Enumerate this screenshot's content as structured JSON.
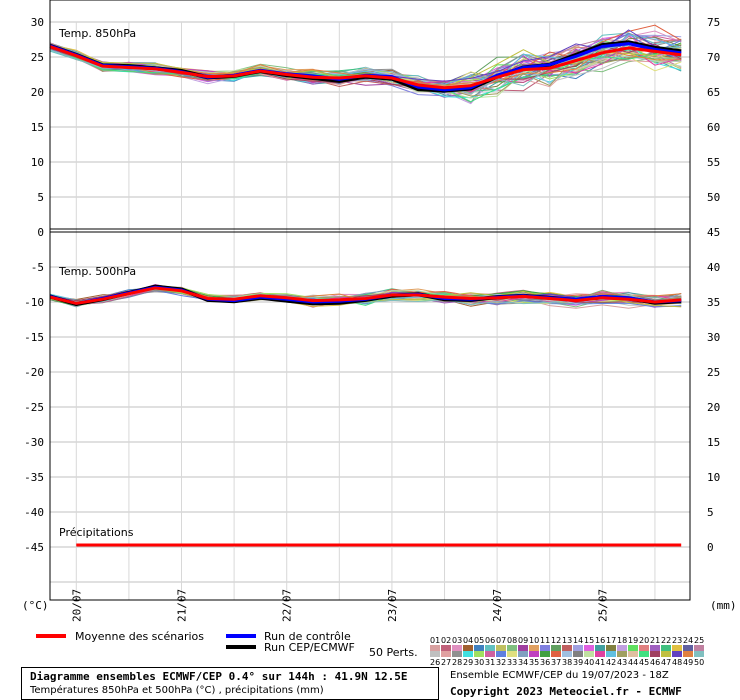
{
  "chart_data": [
    {
      "type": "line",
      "panel_label": "Temp. 850hPa",
      "ylim": [
        0,
        30
      ],
      "yticks": [
        0,
        5,
        10,
        15,
        20,
        25,
        30
      ],
      "right_ylim": [
        45,
        75
      ],
      "right_yticks": [
        45,
        50,
        55,
        60,
        65,
        70,
        75
      ],
      "x": [
        0,
        6,
        12,
        18,
        24,
        30,
        36,
        42,
        48,
        54,
        60,
        66,
        72,
        78,
        84,
        90,
        96,
        102,
        108,
        114,
        120,
        126,
        132,
        138,
        144
      ],
      "series": [
        {
          "role": "mean",
          "color": "#ff0000",
          "values": [
            26.5,
            25.2,
            23.7,
            23.5,
            23.3,
            22.8,
            22.2,
            22.3,
            23.0,
            22.5,
            22.1,
            22.0,
            22.3,
            22.0,
            21.0,
            20.6,
            20.9,
            22.1,
            23.2,
            23.4,
            24.5,
            25.6,
            26.3,
            25.8,
            25.3
          ]
        },
        {
          "role": "control",
          "color": "#0000ff",
          "values": [
            26.6,
            25.3,
            23.8,
            23.6,
            23.4,
            22.9,
            22.1,
            22.4,
            23.1,
            22.6,
            22.3,
            21.8,
            22.4,
            22.2,
            20.7,
            20.3,
            20.6,
            22.4,
            23.5,
            23.9,
            25.1,
            26.5,
            26.9,
            26.1,
            25.6
          ]
        },
        {
          "role": "cep",
          "color": "#000000",
          "values": [
            26.6,
            25.3,
            23.8,
            23.7,
            23.4,
            23.0,
            22.1,
            22.3,
            23.0,
            22.4,
            22.0,
            21.6,
            22.2,
            21.9,
            20.4,
            20.2,
            20.5,
            22.2,
            23.5,
            23.9,
            25.3,
            26.7,
            27.1,
            26.3,
            25.8
          ]
        }
      ]
    },
    {
      "type": "line",
      "panel_label": "Temp. 500hPa",
      "ylim": [
        -45,
        -5
      ],
      "yticks": [
        -45,
        -40,
        -35,
        -30,
        -25,
        -20,
        -15,
        -10,
        -5
      ],
      "right_ylim": [
        0,
        40
      ],
      "right_yticks": [
        0,
        5,
        10,
        15,
        20,
        25,
        30,
        35,
        40
      ],
      "x": [
        0,
        6,
        12,
        18,
        24,
        30,
        36,
        42,
        48,
        54,
        60,
        66,
        72,
        78,
        84,
        90,
        96,
        102,
        108,
        114,
        120,
        126,
        132,
        138,
        144
      ],
      "series": [
        {
          "role": "mean",
          "color": "#ff0000",
          "values": [
            -9.3,
            -10.2,
            -9.6,
            -8.8,
            -8.0,
            -8.4,
            -9.5,
            -9.6,
            -9.1,
            -9.4,
            -9.8,
            -9.7,
            -9.5,
            -9.0,
            -9.0,
            -9.3,
            -9.5,
            -9.4,
            -9.2,
            -9.5,
            -9.8,
            -9.4,
            -9.6,
            -10.0,
            -9.7
          ]
        },
        {
          "role": "control",
          "color": "#0000ff",
          "values": [
            -9.2,
            -10.2,
            -9.5,
            -8.7,
            -7.9,
            -8.3,
            -9.6,
            -9.8,
            -9.3,
            -9.6,
            -10.0,
            -9.9,
            -9.6,
            -9.0,
            -8.9,
            -9.5,
            -9.6,
            -9.3,
            -9.1,
            -9.4,
            -9.6,
            -9.2,
            -9.4,
            -10.0,
            -9.8
          ]
        },
        {
          "role": "cep",
          "color": "#000000",
          "values": [
            -9.2,
            -10.3,
            -9.6,
            -8.7,
            -7.8,
            -8.2,
            -9.7,
            -9.9,
            -9.4,
            -9.8,
            -10.2,
            -10.1,
            -9.7,
            -9.1,
            -8.9,
            -9.6,
            -9.7,
            -9.3,
            -9.1,
            -9.4,
            -9.7,
            -9.3,
            -9.5,
            -10.1,
            -9.9
          ]
        }
      ]
    },
    {
      "type": "line",
      "panel_label": "Précipitations",
      "x": [
        6,
        12,
        18,
        24,
        30,
        36,
        42,
        48,
        54,
        60,
        66,
        72,
        78,
        84,
        90,
        96,
        102,
        108,
        114,
        120,
        126,
        132,
        138,
        144
      ],
      "series": [
        {
          "role": "mean",
          "color": "#ff0000",
          "values": [
            0,
            0,
            0,
            0,
            0,
            0,
            0,
            0,
            0,
            0,
            0,
            0,
            0,
            0,
            0,
            0,
            0,
            0,
            0,
            0,
            0,
            0,
            0,
            0
          ]
        }
      ]
    }
  ],
  "x_axis": {
    "date_ticks": [
      "20/07",
      "21/07",
      "22/07",
      "23/07",
      "24/07",
      "25/07"
    ],
    "left_unit": "(°C)",
    "right_unit": "(mm)"
  },
  "ensemble_colors": [
    "#d8a0a0",
    "#c0607a",
    "#e090c0",
    "#a06030",
    "#4080c0",
    "#60c0c0",
    "#c0c060",
    "#80c080",
    "#a040a0",
    "#e0a060",
    "#8080e0",
    "#60a060",
    "#c06060",
    "#a0a0e0",
    "#e060e0",
    "#40a0a0",
    "#808040",
    "#c0a0e0",
    "#60e060",
    "#e08080",
    "#a060c0",
    "#40c080",
    "#e0c040",
    "#6060a0",
    "#c080a0",
    "#c0c0c0",
    "#e0a0a0",
    "#909090",
    "#40e0e0",
    "#a0e060",
    "#d060a0",
    "#6080e0",
    "#e0e080",
    "#80a0c0",
    "#c040c0",
    "#40a040",
    "#e06040",
    "#a0c0e0",
    "#808080",
    "#c0e0a0",
    "#e040a0",
    "#60c0e0",
    "#a0a060",
    "#e0c0a0",
    "#40e080",
    "#a04060",
    "#c0c040",
    "#6040c0",
    "#e08040",
    "#80c0c0"
  ],
  "legend": {
    "mean_label": "Moyenne des scénarios",
    "control_label": "Run de contrôle",
    "cep_label": "Run CEP/ECMWF",
    "perts_label": "50 Perts.",
    "nums_top": [
      "01",
      "02",
      "03",
      "04",
      "05",
      "06",
      "07",
      "08",
      "09",
      "10",
      "11",
      "12",
      "13",
      "14",
      "15",
      "16",
      "17",
      "18",
      "19",
      "20",
      "21",
      "22",
      "23",
      "24",
      "25"
    ],
    "nums_bottom": [
      "26",
      "27",
      "28",
      "29",
      "30",
      "31",
      "32",
      "33",
      "34",
      "35",
      "36",
      "37",
      "38",
      "39",
      "40",
      "41",
      "42",
      "43",
      "44",
      "45",
      "46",
      "47",
      "48",
      "49",
      "50"
    ]
  },
  "footer": {
    "title": "Diagramme ensembles ECMWF/CEP 0.4° sur 144h : 41.9N 12.5E",
    "subtitle": "Températures 850hPa et 500hPa (°C) , précipitations (mm)",
    "run": "Ensemble ECMWF/CEP du 19/07/2023 - 18Z",
    "copyright": "Copyright 2023 Meteociel.fr - ECMWF"
  }
}
